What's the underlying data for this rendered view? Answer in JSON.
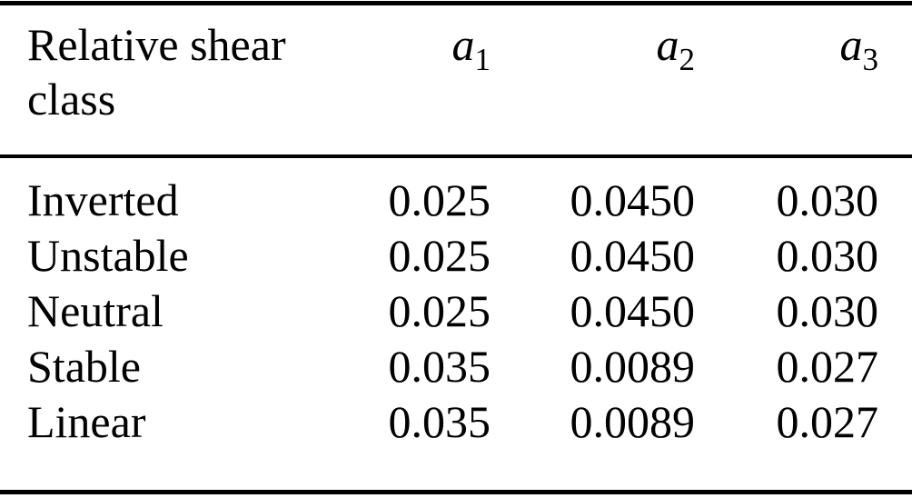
{
  "table": {
    "header": {
      "label": "Relative shear class",
      "columns": [
        {
          "base": "a",
          "sub": "1"
        },
        {
          "base": "a",
          "sub": "2"
        },
        {
          "base": "a",
          "sub": "3"
        }
      ]
    },
    "rows": [
      {
        "label": "Inverted",
        "values": [
          "0.025",
          "0.0450",
          "0.030"
        ]
      },
      {
        "label": "Unstable",
        "values": [
          "0.025",
          "0.0450",
          "0.030"
        ]
      },
      {
        "label": "Neutral",
        "values": [
          "0.025",
          "0.0450",
          "0.030"
        ]
      },
      {
        "label": "Stable",
        "values": [
          "0.035",
          "0.0089",
          "0.027"
        ]
      },
      {
        "label": "Linear",
        "values": [
          "0.035",
          "0.0089",
          "0.027"
        ]
      }
    ],
    "colors": {
      "text": "#000000",
      "background": "#ffffff",
      "rule": "#000000"
    }
  }
}
